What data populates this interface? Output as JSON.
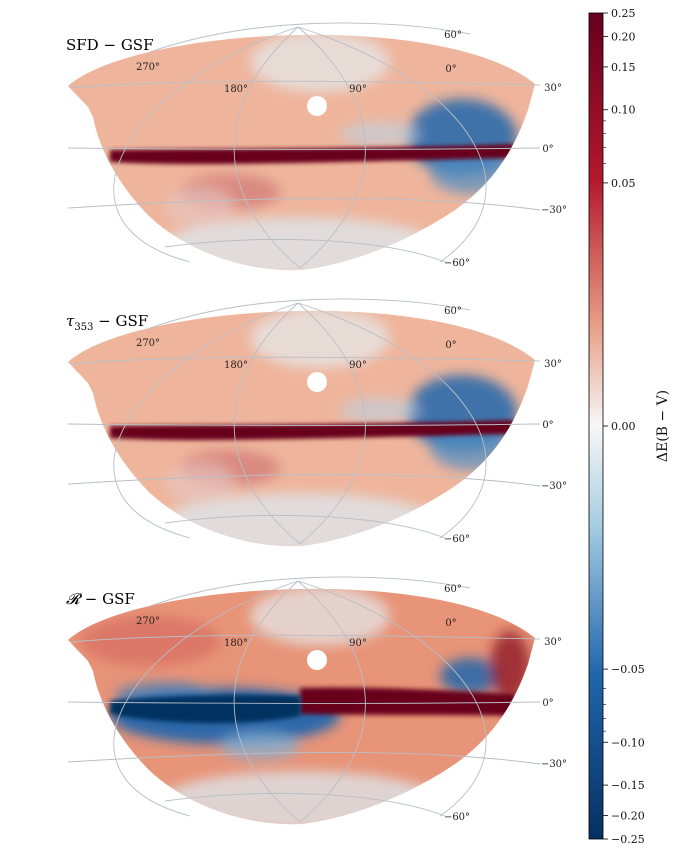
{
  "chart_data": [
    {
      "type": "heatmap",
      "projection": "mollweide",
      "title": "SFD − GSF",
      "title_display": {
        "main": "SFD − GSF",
        "sub": ""
      },
      "longitude_labels": [
        "270°",
        "180°",
        "90°",
        "0°"
      ],
      "latitude_labels": [
        "60°",
        "30°",
        "0°",
        "−30°",
        "−60°"
      ],
      "features": {
        "galactic_plane": "strong positive difference (dark red)",
        "upper_right_region": "negative difference (blue)",
        "high_latitudes": "mild positive difference (light red)"
      }
    },
    {
      "type": "heatmap",
      "projection": "mollweide",
      "title": "τ353 − GSF",
      "title_display": {
        "main": "τ",
        "sub": "353",
        "rest": " − GSF"
      },
      "longitude_labels": [
        "270°",
        "180°",
        "90°",
        "0°"
      ],
      "latitude_labels": [
        "60°",
        "30°",
        "0°",
        "−30°",
        "−60°"
      ],
      "features": {
        "galactic_plane": "strong positive difference (dark red)",
        "upper_right_region": "negative difference (blue)",
        "high_latitudes": "mild positive difference (light red)"
      }
    },
    {
      "type": "heatmap",
      "projection": "mollweide",
      "title": "𝓡 − GSF",
      "title_display": {
        "main": "𝓡",
        "sub": "",
        "rest": " − GSF"
      },
      "longitude_labels": [
        "270°",
        "180°",
        "90°",
        "0°"
      ],
      "latitude_labels": [
        "60°",
        "30°",
        "0°",
        "−30°",
        "−60°"
      ],
      "features": {
        "galactic_plane_left": "negative difference (dark blue)",
        "galactic_plane_right": "strong positive difference (dark red)",
        "high_latitudes": "positive difference (red)"
      }
    }
  ],
  "colorbar": {
    "label": "ΔE(B − V)",
    "colormap": "RdBu_r",
    "scale": "symlog",
    "linthresh": 0.05,
    "vmin": -0.25,
    "vmax": 0.25,
    "tick_values": [
      0.25,
      0.2,
      0.15,
      0.1,
      0.05,
      0.0,
      -0.05,
      -0.1,
      -0.15,
      -0.2,
      -0.25
    ],
    "tick_labels": [
      "0.25",
      "0.20",
      "0.15",
      "0.10",
      "0.05",
      "0.00",
      "−0.05",
      "−0.10",
      "−0.15",
      "−0.20",
      "−0.25"
    ]
  },
  "colors": {
    "dark_red": "#67001f",
    "red": "#b2182b",
    "light_red": "#e8a088",
    "white": "#f7f7f7",
    "light_blue": "#a6cde2",
    "blue": "#2166ac",
    "dark_blue": "#053061",
    "grid": "#b8bec6"
  }
}
